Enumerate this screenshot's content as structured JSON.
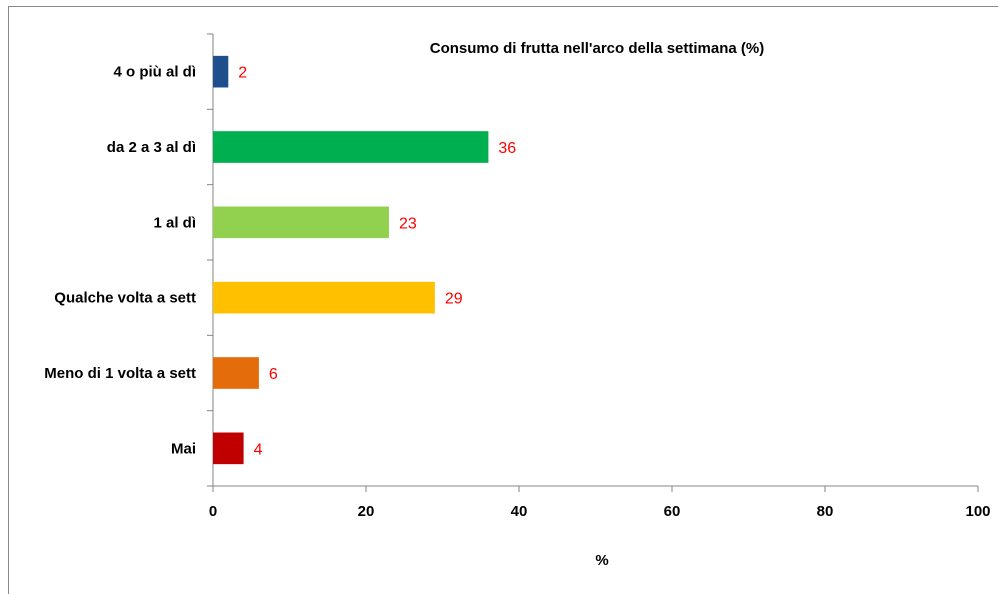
{
  "chart_data": {
    "type": "bar",
    "orientation": "horizontal",
    "title": "Consumo di frutta nell'arco della settimana (%)",
    "xlabel": "%",
    "ylabel": "",
    "xlim": [
      0,
      100
    ],
    "xticks": [
      0,
      20,
      40,
      60,
      80,
      100
    ],
    "grid": false,
    "legend": "none",
    "categories": [
      "4 o più al dì",
      "da 2 a 3 al dì",
      "1 al dì",
      "Qualche volta a sett",
      "Meno di 1 volta a sett",
      "Mai"
    ],
    "values": [
      2,
      36,
      23,
      29,
      6,
      4
    ],
    "data_labels": [
      "2",
      "36",
      "23",
      "29",
      "6",
      "4"
    ],
    "colors": [
      "#1f4e8c",
      "#00b050",
      "#92d050",
      "#ffc000",
      "#e46c0a",
      "#c00000"
    ],
    "data_label_color": "#ff0000"
  }
}
